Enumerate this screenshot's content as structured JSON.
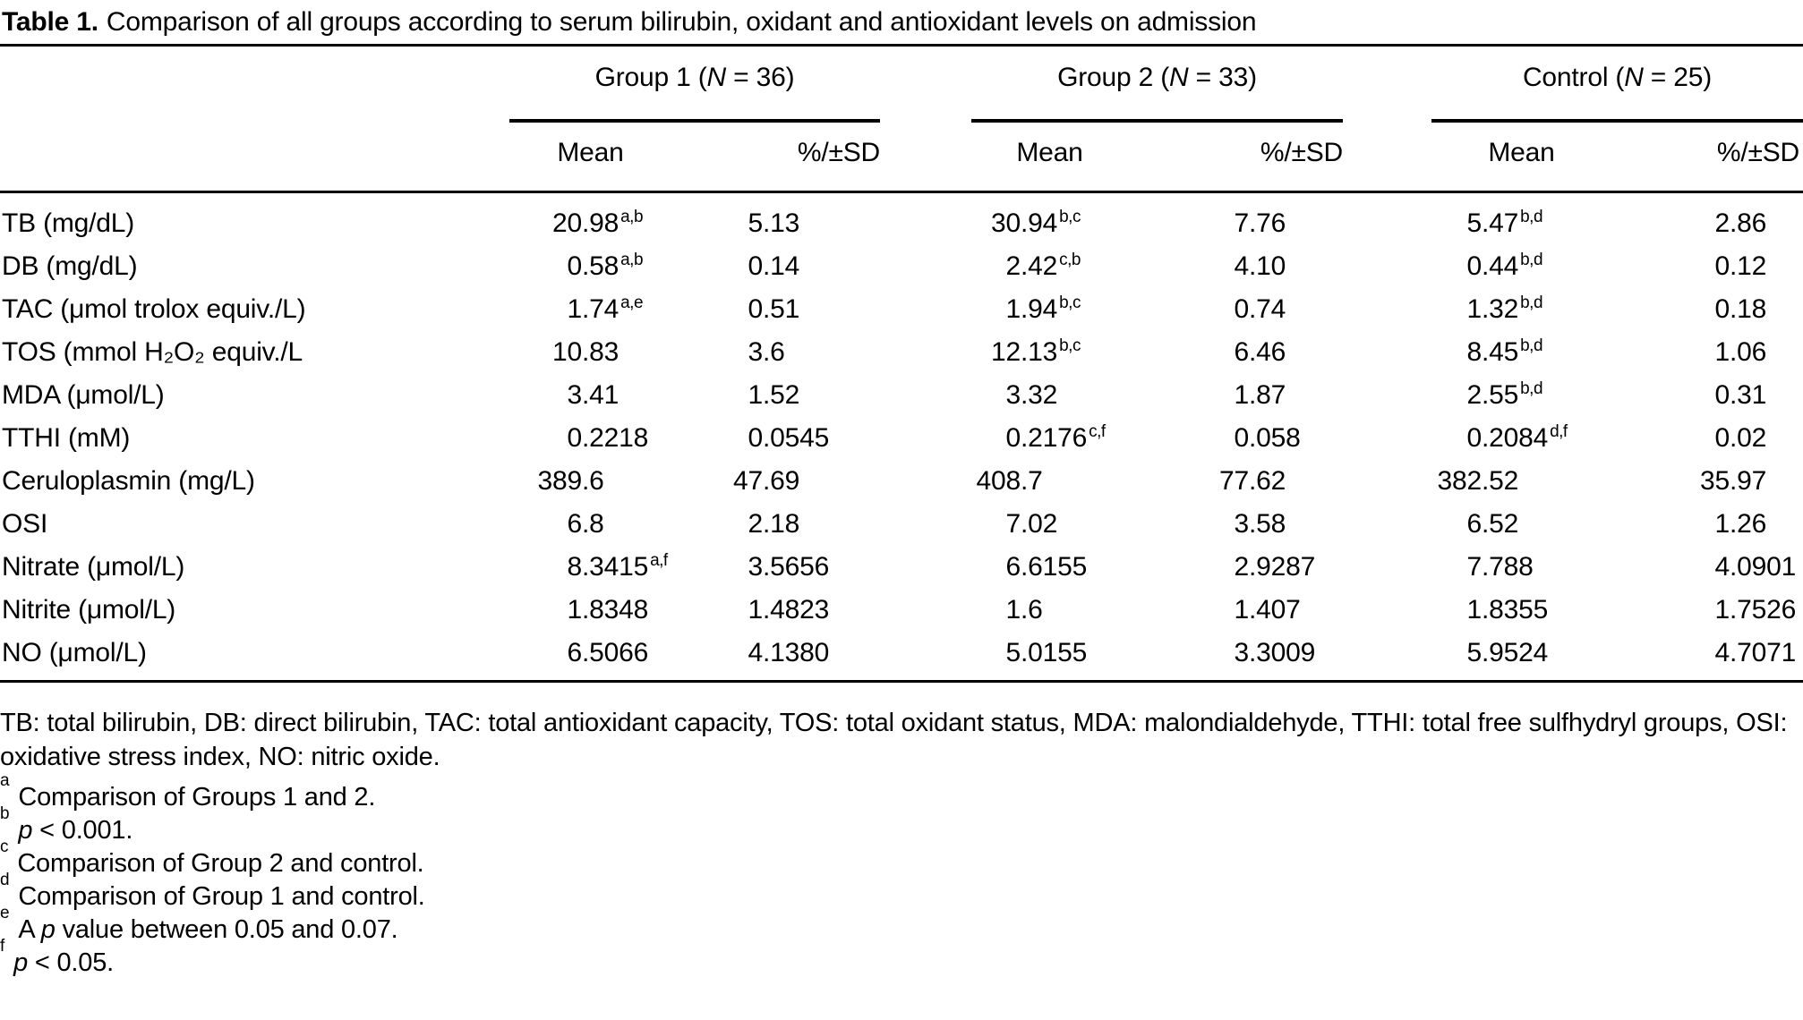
{
  "title": {
    "label": "Table 1.",
    "text": "Comparison of all groups according to serum bilirubin, oxidant and antioxidant levels on admission"
  },
  "table": {
    "groups": [
      {
        "name": "Group 1 (N = 36)"
      },
      {
        "name": "Group 2 (N = 33)"
      },
      {
        "name": "Control (N = 25)"
      }
    ],
    "subheaders": {
      "mean": "Mean",
      "sd": "%/±SD"
    },
    "rows": [
      {
        "label": "TB (mg/dL)",
        "values": [
          {
            "v": "20.98",
            "sup": "a,b"
          },
          {
            "v": "5.13"
          },
          {
            "v": "30.94",
            "sup": "b,c"
          },
          {
            "v": "7.76"
          },
          {
            "v": "5.47",
            "sup": "b,d"
          },
          {
            "v": "2.86"
          }
        ]
      },
      {
        "label": "DB (mg/dL)",
        "values": [
          {
            "v": "0.58",
            "sup": "a,b"
          },
          {
            "v": "0.14"
          },
          {
            "v": "2.42",
            "sup": "c,b"
          },
          {
            "v": "4.10"
          },
          {
            "v": "0.44",
            "sup": "b,d"
          },
          {
            "v": "0.12"
          }
        ]
      },
      {
        "label": "TAC (μmol trolox equiv./L)",
        "values": [
          {
            "v": "1.74",
            "sup": "a,e"
          },
          {
            "v": "0.51"
          },
          {
            "v": "1.94",
            "sup": "b,c"
          },
          {
            "v": "0.74"
          },
          {
            "v": "1.32",
            "sup": "b,d"
          },
          {
            "v": "0.18"
          }
        ]
      },
      {
        "label": "TOS (mmol H₂O₂ equiv./L",
        "values": [
          {
            "v": "10.83"
          },
          {
            "v": "3.6"
          },
          {
            "v": "12.13",
            "sup": "b,c"
          },
          {
            "v": "6.46"
          },
          {
            "v": "8.45",
            "sup": "b,d"
          },
          {
            "v": "1.06"
          }
        ]
      },
      {
        "label": "MDA (μmol/L)",
        "values": [
          {
            "v": "3.41"
          },
          {
            "v": "1.52"
          },
          {
            "v": "3.32"
          },
          {
            "v": "1.87"
          },
          {
            "v": "2.55",
            "sup": "b,d"
          },
          {
            "v": "0.31"
          }
        ]
      },
      {
        "label": "TTHI (mM)",
        "values": [
          {
            "v": "0.2218"
          },
          {
            "v": "0.0545"
          },
          {
            "v": "0.2176",
            "sup": "c,f"
          },
          {
            "v": "0.058"
          },
          {
            "v": "0.2084",
            "sup": "d,f"
          },
          {
            "v": "0.02"
          }
        ]
      },
      {
        "label": "Ceruloplasmin (mg/L)",
        "values": [
          {
            "v": "389.6"
          },
          {
            "v": "47.69"
          },
          {
            "v": "408.7"
          },
          {
            "v": "77.62"
          },
          {
            "v": "382.52"
          },
          {
            "v": "35.97"
          }
        ]
      },
      {
        "label": "OSI",
        "values": [
          {
            "v": "6.8"
          },
          {
            "v": "2.18"
          },
          {
            "v": "7.02"
          },
          {
            "v": "3.58"
          },
          {
            "v": "6.52"
          },
          {
            "v": "1.26"
          }
        ]
      },
      {
        "label": "Nitrate (μmol/L)",
        "values": [
          {
            "v": "8.3415",
            "sup": "a,f"
          },
          {
            "v": "3.5656"
          },
          {
            "v": "6.6155"
          },
          {
            "v": "2.9287"
          },
          {
            "v": "7.788"
          },
          {
            "v": "4.0901"
          }
        ]
      },
      {
        "label": "Nitrite (μmol/L)",
        "values": [
          {
            "v": "1.8348"
          },
          {
            "v": "1.4823"
          },
          {
            "v": "1.6"
          },
          {
            "v": "1.407"
          },
          {
            "v": "1.8355"
          },
          {
            "v": "1.7526"
          }
        ]
      },
      {
        "label": "NO (μmol/L)",
        "values": [
          {
            "v": "6.5066"
          },
          {
            "v": "4.1380"
          },
          {
            "v": "5.0155"
          },
          {
            "v": "3.3009"
          },
          {
            "v": "5.9524"
          },
          {
            "v": "4.7071"
          }
        ]
      }
    ]
  },
  "footnotes": {
    "abbreviations": "TB: total bilirubin, DB: direct bilirubin, TAC: total antioxidant capacity, TOS: total oxidant status, MDA: malondialdehyde, TTHI: total free sulfhydryl groups, OSI: oxidative stress index, NO: nitric oxide.",
    "items": [
      {
        "marker": "a",
        "text": "Comparison of Groups 1 and 2."
      },
      {
        "marker": "b",
        "text": "p < 0.001."
      },
      {
        "marker": "c",
        "text": "Comparison of Group 2 and control."
      },
      {
        "marker": "d",
        "text": "Comparison of Group 1 and control."
      },
      {
        "marker": "e",
        "text": "A p value between 0.05 and 0.07."
      },
      {
        "marker": "f",
        "text": "p < 0.05."
      }
    ]
  },
  "colors": {
    "text": "#000000",
    "background": "#ffffff",
    "rule": "#000000"
  }
}
